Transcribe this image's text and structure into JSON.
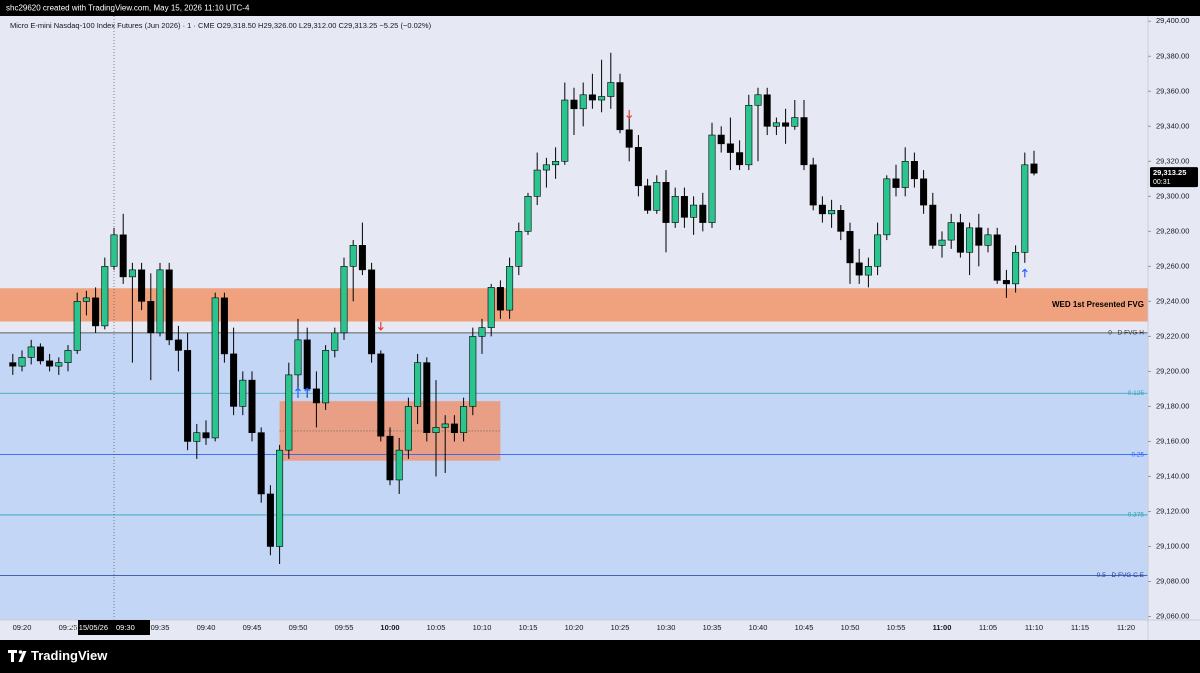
{
  "chart_data": {
    "type": "candlestick",
    "attribution": "shc29620 created with TradingView.com, May 15, 2026 11:10 UTC-4",
    "legend_text": "Micro E-mini Nasdaq-100 Index Futures (Jun 2026) · 1 · CME   O29,318.50  H29,326.00  L29,312.00  C29,313.25  −5.25 (−0.02%)",
    "brand": "TradingView",
    "x": [
      "09:19",
      "09:20",
      "09:21",
      "09:22",
      "09:23",
      "09:24",
      "09:25",
      "09:26",
      "09:27",
      "09:28",
      "09:29",
      "09:30",
      "09:31",
      "09:32",
      "09:33",
      "09:34",
      "09:35",
      "09:36",
      "09:37",
      "09:38",
      "09:39",
      "09:40",
      "09:41",
      "09:42",
      "09:43",
      "09:44",
      "09:45",
      "09:46",
      "09:47",
      "09:48",
      "09:49",
      "09:50",
      "09:51",
      "09:52",
      "09:53",
      "09:54",
      "09:55",
      "09:56",
      "09:57",
      "09:58",
      "09:59",
      "10:00",
      "10:01",
      "10:02",
      "10:03",
      "10:04",
      "10:05",
      "10:06",
      "10:07",
      "10:08",
      "10:09",
      "10:10",
      "10:11",
      "10:12",
      "10:13",
      "10:14",
      "10:15",
      "10:16",
      "10:17",
      "10:18",
      "10:19",
      "10:20",
      "10:21",
      "10:22",
      "10:23",
      "10:24",
      "10:25",
      "10:26",
      "10:27",
      "10:28",
      "10:29",
      "10:30",
      "10:31",
      "10:32",
      "10:33",
      "10:34",
      "10:35",
      "10:36",
      "10:37",
      "10:38",
      "10:39",
      "10:40",
      "10:41",
      "10:42",
      "10:43",
      "10:44",
      "10:45",
      "10:46",
      "10:47",
      "10:48",
      "10:49",
      "10:50",
      "10:51",
      "10:52",
      "10:53",
      "10:54",
      "10:55",
      "10:56",
      "10:57",
      "10:58",
      "10:59",
      "11:00",
      "11:01",
      "11:02",
      "11:03",
      "11:04",
      "11:05",
      "11:06",
      "11:07",
      "11:08",
      "11:09",
      "11:10"
    ],
    "open": [
      29205,
      29203,
      29208,
      29214,
      29206,
      29203,
      29205,
      29212,
      29240,
      29242,
      29226,
      29260,
      29278,
      29254,
      29258,
      29240,
      29222,
      29258,
      29218,
      29212,
      29160,
      29165,
      29162,
      29242,
      29210,
      29180,
      29195,
      29165,
      29130,
      29100,
      29155,
      29198,
      29218,
      29190,
      29182,
      29212,
      29222,
      29260,
      29272,
      29258,
      29210,
      29163,
      29138,
      29155,
      29180,
      29205,
      29165,
      29168,
      29170,
      29165,
      29180,
      29220,
      29225,
      29248,
      29235,
      29260,
      29280,
      29300,
      29315,
      29318,
      29320,
      29355,
      29350,
      29358,
      29355,
      29357,
      29365,
      29338,
      29328,
      29306,
      29292,
      29308,
      29285,
      29300,
      29288,
      29295,
      29285,
      29335,
      29330,
      29325,
      29318,
      29352,
      29358,
      29340,
      29342,
      29340,
      29345,
      29318,
      29295,
      29290,
      29292,
      29280,
      29262,
      29255,
      29260,
      29278,
      29310,
      29305,
      29320,
      29310,
      29295,
      29272,
      29275,
      29285,
      29268,
      29282,
      29272,
      29278,
      29252,
      29250,
      29268,
      29318.5
    ],
    "high": [
      29210,
      29212,
      29218,
      29216,
      29210,
      29208,
      29215,
      29245,
      29246,
      29248,
      29265,
      29282,
      29290,
      29262,
      29262,
      29256,
      29262,
      29262,
      29226,
      29222,
      29170,
      29172,
      29245,
      29245,
      29225,
      29200,
      29200,
      29168,
      29135,
      29158,
      29205,
      29230,
      29225,
      29200,
      29215,
      29225,
      29265,
      29275,
      29285,
      29262,
      29212,
      29168,
      29162,
      29185,
      29210,
      29208,
      29195,
      29175,
      29175,
      29185,
      29225,
      29230,
      29250,
      29252,
      29265,
      29285,
      29302,
      29325,
      29322,
      29328,
      29365,
      29362,
      29365,
      29370,
      29378,
      29382,
      29370,
      29345,
      29335,
      29310,
      29312,
      29315,
      29305,
      29305,
      29300,
      29302,
      29342,
      29340,
      29345,
      29332,
      29358,
      29362,
      29362,
      29345,
      29350,
      29355,
      29355,
      29322,
      29300,
      29298,
      29295,
      29285,
      29270,
      29265,
      29285,
      29312,
      29318,
      29328,
      29325,
      29315,
      29302,
      29280,
      29290,
      29290,
      29285,
      29290,
      29282,
      29282,
      29258,
      29272,
      29325,
      29326
    ],
    "low": [
      29198,
      29200,
      29204,
      29204,
      29200,
      29198,
      29200,
      29210,
      29232,
      29222,
      29224,
      29258,
      29250,
      29205,
      29235,
      29195,
      29220,
      29215,
      29200,
      29155,
      29150,
      29158,
      29160,
      29205,
      29175,
      29175,
      29160,
      29125,
      29095,
      29090,
      29150,
      29185,
      29185,
      29168,
      29178,
      29208,
      29218,
      29240,
      29255,
      29205,
      29160,
      29135,
      29130,
      29150,
      29170,
      29160,
      29140,
      29142,
      29160,
      29160,
      29175,
      29210,
      29220,
      29230,
      29230,
      29255,
      29278,
      29295,
      29305,
      29310,
      29318,
      29335,
      29340,
      29350,
      29348,
      29350,
      29336,
      29320,
      29300,
      29290,
      29290,
      29268,
      29282,
      29282,
      29278,
      29280,
      29282,
      29325,
      29315,
      29315,
      29315,
      29320,
      29335,
      29335,
      29330,
      29338,
      29315,
      29292,
      29285,
      29282,
      29275,
      29250,
      29250,
      29248,
      29255,
      29275,
      29300,
      29300,
      29305,
      29290,
      29270,
      29265,
      29270,
      29265,
      29255,
      29260,
      29268,
      29250,
      29242,
      29245,
      29262,
      29312
    ],
    "close": [
      29203,
      29208,
      29214,
      29206,
      29203,
      29205,
      29212,
      29240,
      29242,
      29226,
      29260,
      29278,
      29254,
      29258,
      29240,
      29222,
      29258,
      29218,
      29212,
      29160,
      29165,
      29162,
      29242,
      29210,
      29180,
      29195,
      29165,
      29130,
      29100,
      29155,
      29198,
      29218,
      29190,
      29182,
      29212,
      29222,
      29260,
      29272,
      29258,
      29210,
      29163,
      29138,
      29155,
      29180,
      29205,
      29165,
      29168,
      29170,
      29165,
      29180,
      29220,
      29225,
      29248,
      29235,
      29260,
      29280,
      29300,
      29315,
      29318,
      29320,
      29355,
      29350,
      29358,
      29355,
      29357,
      29365,
      29338,
      29328,
      29306,
      29292,
      29308,
      29285,
      29300,
      29288,
      29295,
      29285,
      29335,
      29330,
      29325,
      29318,
      29352,
      29358,
      29340,
      29342,
      29340,
      29345,
      29318,
      29295,
      29290,
      29292,
      29280,
      29262,
      29255,
      29260,
      29278,
      29310,
      29305,
      29320,
      29310,
      29295,
      29272,
      29275,
      29285,
      29268,
      29282,
      29272,
      29278,
      29252,
      29250,
      29268,
      29318,
      29313.25
    ],
    "up_color": "#2bc48f",
    "down_color": "#000000",
    "ylim": [
      29058,
      29403
    ],
    "yticks": [
      {
        "value": 29060,
        "label": "29,060.00"
      },
      {
        "value": 29080,
        "label": "29,080.00"
      },
      {
        "value": 29100,
        "label": "29,100.00"
      },
      {
        "value": 29120,
        "label": "29,120.00"
      },
      {
        "value": 29140,
        "label": "29,140.00"
      },
      {
        "value": 29160,
        "label": "29,160.00"
      },
      {
        "value": 29180,
        "label": "29,180.00"
      },
      {
        "value": 29200,
        "label": "29,200.00"
      },
      {
        "value": 29220,
        "label": "29,220.00"
      },
      {
        "value": 29240,
        "label": "29,240.00"
      },
      {
        "value": 29260,
        "label": "29,260.00"
      },
      {
        "value": 29280,
        "label": "29,280.00"
      },
      {
        "value": 29300,
        "label": "29,300.00"
      },
      {
        "value": 29320,
        "label": "29,320.00"
      },
      {
        "value": 29340,
        "label": "29,340.00"
      },
      {
        "value": 29360,
        "label": "29,360.00"
      },
      {
        "value": 29380,
        "label": "29,380.00"
      },
      {
        "value": 29400,
        "label": "29,400.00"
      }
    ],
    "xticks": [
      "09:20",
      "09:25",
      "09:30",
      "09:35",
      "09:40",
      "09:45",
      "09:50",
      "09:55",
      "10:00",
      "10:05",
      "10:10",
      "10:15",
      "10:20",
      "10:25",
      "10:30",
      "10:35",
      "10:40",
      "10:45",
      "10:50",
      "10:55",
      "11:00",
      "11:05",
      "11:10",
      "11:15",
      "11:20"
    ],
    "bold_xticks": [
      "10:00",
      "11:00"
    ],
    "crosshair": {
      "x": "09:30",
      "label": "Fri 15/05/26"
    },
    "last_price": {
      "value": 29313.25,
      "label": "29,313.25",
      "countdown": "00:31"
    },
    "fvg_band": {
      "top": 29247.5,
      "bottom": 29228.5,
      "color": "#f0a27e",
      "label": "WED 1st Presented FVG"
    },
    "fvg_zone": {
      "top": 29222,
      "color": "#c4d6f6"
    },
    "box": {
      "from": "09:48",
      "to": "10:12",
      "top": 29183,
      "bottom": 29149,
      "color": "#e99f86"
    },
    "levels": [
      {
        "value": 29222,
        "label": "0 - D FVG H",
        "color": "#333333"
      },
      {
        "value": 29187.5,
        "label": "0.125",
        "color": "#2aa3b5"
      },
      {
        "value": 29152.5,
        "label": "0.25",
        "color": "#2962ff"
      },
      {
        "value": 29118,
        "label": "0.375",
        "color": "#2aa3b5"
      },
      {
        "value": 29083.5,
        "label": "0.5 - D FVG C.E",
        "color": "#1e3c9c"
      }
    ],
    "signals": [
      {
        "x": "09:50",
        "value": 29188,
        "dir": "up",
        "color": "#2962ff"
      },
      {
        "x": "09:51",
        "value": 29188,
        "dir": "up",
        "color": "#2962ff"
      },
      {
        "x": "09:59",
        "value": 29226,
        "dir": "down",
        "color": "#e53935"
      },
      {
        "x": "10:26",
        "value": 29347,
        "dir": "down",
        "color": "#e53935"
      },
      {
        "x": "11:09",
        "value": 29256,
        "dir": "up",
        "color": "#2962ff"
      }
    ]
  }
}
